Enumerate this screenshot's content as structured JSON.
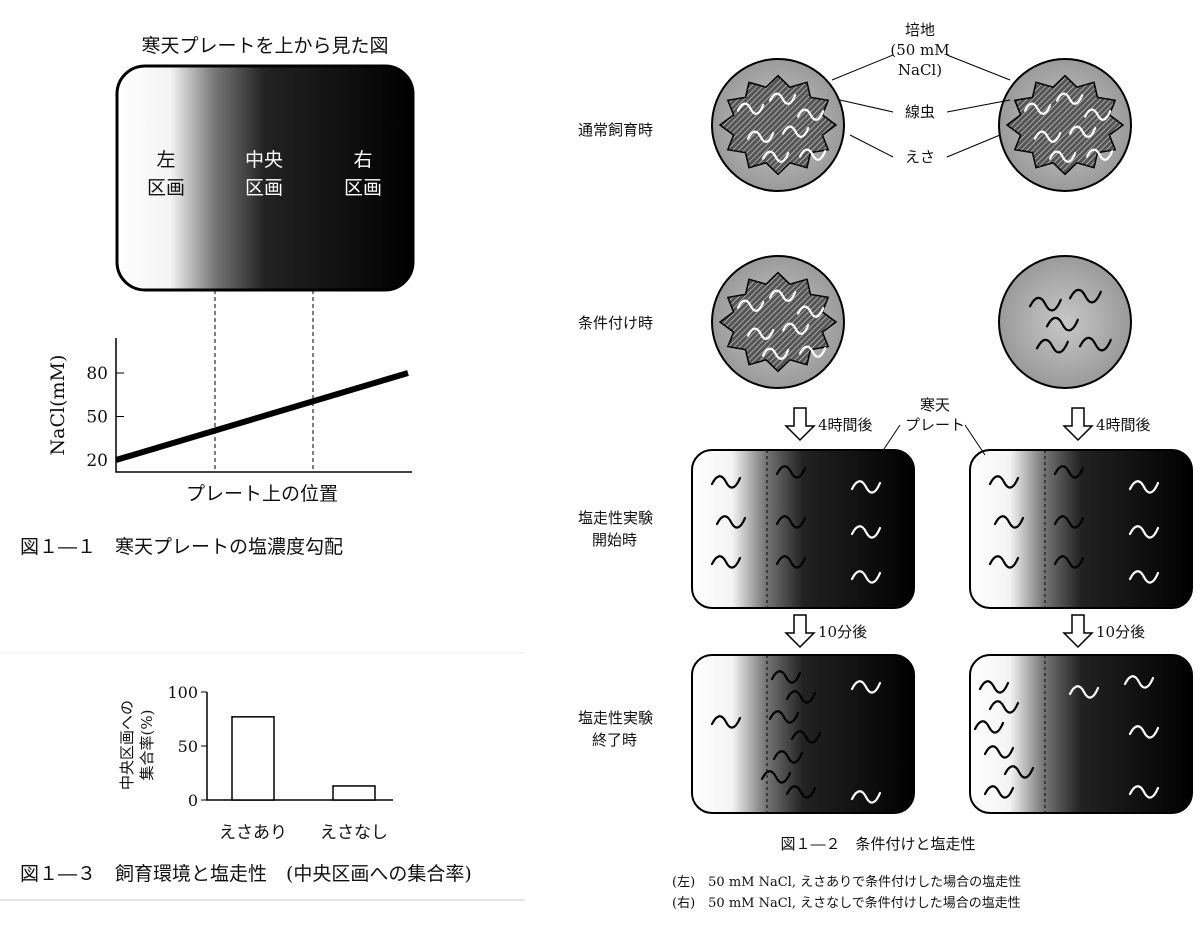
{
  "fig1_1": {
    "plate_title": "寒天プレートを上から見た図",
    "left": [
      "左",
      "区画"
    ],
    "center": [
      "中央",
      "区画"
    ],
    "right": [
      "右",
      "区画"
    ],
    "ylabel": "NaCl(mM)",
    "xlabel": "プレート上の位置",
    "yticks": [
      "80",
      "50",
      "20"
    ],
    "caption": "図１―１　寒天プレートの塩濃度勾配"
  },
  "fig1_2": {
    "row_labels": {
      "normal": "通常飼育時",
      "conditioning": "条件付け時",
      "start": [
        "塩走性実験",
        "開始時"
      ],
      "end": [
        "塩走性実験",
        "終了時"
      ]
    },
    "annotations": {
      "medium": [
        "培地",
        "(50 mM",
        "NaCl)"
      ],
      "worm": "線虫",
      "food": "えさ",
      "agar_plate": [
        "寒天",
        "プレート"
      ]
    },
    "arrow_4h": "4時間後",
    "arrow_10m": "10分後",
    "caption": "図１―２　条件付けと塩走性",
    "legend_left": "(左)　50 mM NaCl,  えさありで条件付けした場合の塩走性",
    "legend_right": "(右)　50 mM NaCl,  えさなしで条件付けした場合の塩走性"
  },
  "chart_data": [
    {
      "type": "line",
      "title": "",
      "xlabel": "プレート上の位置",
      "ylabel": "NaCl(mM)",
      "yticks": [
        20,
        50,
        80
      ],
      "series": [
        {
          "x": [
            "left edge",
            "right edge"
          ],
          "y": [
            20,
            80
          ]
        }
      ]
    },
    {
      "type": "bar",
      "title": "",
      "ylabel": "中央区画への集合率(%)",
      "categories": [
        "えさあり",
        "えさなし"
      ],
      "values": [
        77,
        13
      ],
      "ylim": [
        0,
        100
      ],
      "yticks": [
        0,
        50,
        100
      ]
    }
  ],
  "fig1_3": {
    "ylabel": [
      "中央区画への",
      "集合率(%)"
    ],
    "yticks": [
      "100",
      "50",
      "0"
    ],
    "categories": [
      "えさあり",
      "えさなし"
    ],
    "caption": "図１―３　飼育環境と塩走性　(中央区画への集合率)"
  }
}
